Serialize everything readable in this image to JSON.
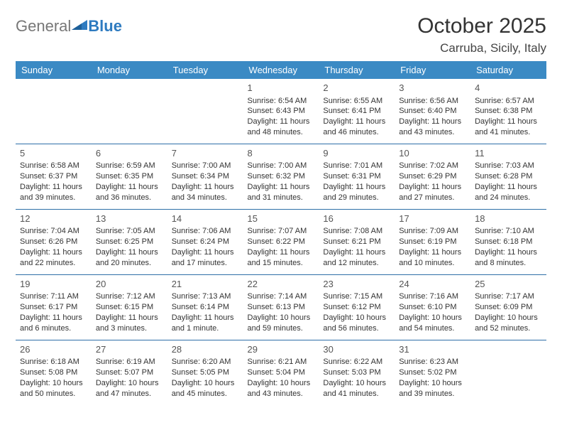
{
  "logo": {
    "general": "General",
    "blue": "Blue"
  },
  "title": "October 2025",
  "location": "Carruba, Sicily, Italy",
  "colors": {
    "headerBg": "#3b8ac4",
    "rowBorder": "#2e6fa8",
    "logoBlue": "#2e7bc0"
  },
  "daysOfWeek": [
    "Sunday",
    "Monday",
    "Tuesday",
    "Wednesday",
    "Thursday",
    "Friday",
    "Saturday"
  ],
  "weeks": [
    [
      null,
      null,
      null,
      {
        "n": "1",
        "sr": "Sunrise: 6:54 AM",
        "ss": "Sunset: 6:43 PM",
        "dl": "Daylight: 11 hours and 48 minutes."
      },
      {
        "n": "2",
        "sr": "Sunrise: 6:55 AM",
        "ss": "Sunset: 6:41 PM",
        "dl": "Daylight: 11 hours and 46 minutes."
      },
      {
        "n": "3",
        "sr": "Sunrise: 6:56 AM",
        "ss": "Sunset: 6:40 PM",
        "dl": "Daylight: 11 hours and 43 minutes."
      },
      {
        "n": "4",
        "sr": "Sunrise: 6:57 AM",
        "ss": "Sunset: 6:38 PM",
        "dl": "Daylight: 11 hours and 41 minutes."
      }
    ],
    [
      {
        "n": "5",
        "sr": "Sunrise: 6:58 AM",
        "ss": "Sunset: 6:37 PM",
        "dl": "Daylight: 11 hours and 39 minutes."
      },
      {
        "n": "6",
        "sr": "Sunrise: 6:59 AM",
        "ss": "Sunset: 6:35 PM",
        "dl": "Daylight: 11 hours and 36 minutes."
      },
      {
        "n": "7",
        "sr": "Sunrise: 7:00 AM",
        "ss": "Sunset: 6:34 PM",
        "dl": "Daylight: 11 hours and 34 minutes."
      },
      {
        "n": "8",
        "sr": "Sunrise: 7:00 AM",
        "ss": "Sunset: 6:32 PM",
        "dl": "Daylight: 11 hours and 31 minutes."
      },
      {
        "n": "9",
        "sr": "Sunrise: 7:01 AM",
        "ss": "Sunset: 6:31 PM",
        "dl": "Daylight: 11 hours and 29 minutes."
      },
      {
        "n": "10",
        "sr": "Sunrise: 7:02 AM",
        "ss": "Sunset: 6:29 PM",
        "dl": "Daylight: 11 hours and 27 minutes."
      },
      {
        "n": "11",
        "sr": "Sunrise: 7:03 AM",
        "ss": "Sunset: 6:28 PM",
        "dl": "Daylight: 11 hours and 24 minutes."
      }
    ],
    [
      {
        "n": "12",
        "sr": "Sunrise: 7:04 AM",
        "ss": "Sunset: 6:26 PM",
        "dl": "Daylight: 11 hours and 22 minutes."
      },
      {
        "n": "13",
        "sr": "Sunrise: 7:05 AM",
        "ss": "Sunset: 6:25 PM",
        "dl": "Daylight: 11 hours and 20 minutes."
      },
      {
        "n": "14",
        "sr": "Sunrise: 7:06 AM",
        "ss": "Sunset: 6:24 PM",
        "dl": "Daylight: 11 hours and 17 minutes."
      },
      {
        "n": "15",
        "sr": "Sunrise: 7:07 AM",
        "ss": "Sunset: 6:22 PM",
        "dl": "Daylight: 11 hours and 15 minutes."
      },
      {
        "n": "16",
        "sr": "Sunrise: 7:08 AM",
        "ss": "Sunset: 6:21 PM",
        "dl": "Daylight: 11 hours and 12 minutes."
      },
      {
        "n": "17",
        "sr": "Sunrise: 7:09 AM",
        "ss": "Sunset: 6:19 PM",
        "dl": "Daylight: 11 hours and 10 minutes."
      },
      {
        "n": "18",
        "sr": "Sunrise: 7:10 AM",
        "ss": "Sunset: 6:18 PM",
        "dl": "Daylight: 11 hours and 8 minutes."
      }
    ],
    [
      {
        "n": "19",
        "sr": "Sunrise: 7:11 AM",
        "ss": "Sunset: 6:17 PM",
        "dl": "Daylight: 11 hours and 6 minutes."
      },
      {
        "n": "20",
        "sr": "Sunrise: 7:12 AM",
        "ss": "Sunset: 6:15 PM",
        "dl": "Daylight: 11 hours and 3 minutes."
      },
      {
        "n": "21",
        "sr": "Sunrise: 7:13 AM",
        "ss": "Sunset: 6:14 PM",
        "dl": "Daylight: 11 hours and 1 minute."
      },
      {
        "n": "22",
        "sr": "Sunrise: 7:14 AM",
        "ss": "Sunset: 6:13 PM",
        "dl": "Daylight: 10 hours and 59 minutes."
      },
      {
        "n": "23",
        "sr": "Sunrise: 7:15 AM",
        "ss": "Sunset: 6:12 PM",
        "dl": "Daylight: 10 hours and 56 minutes."
      },
      {
        "n": "24",
        "sr": "Sunrise: 7:16 AM",
        "ss": "Sunset: 6:10 PM",
        "dl": "Daylight: 10 hours and 54 minutes."
      },
      {
        "n": "25",
        "sr": "Sunrise: 7:17 AM",
        "ss": "Sunset: 6:09 PM",
        "dl": "Daylight: 10 hours and 52 minutes."
      }
    ],
    [
      {
        "n": "26",
        "sr": "Sunrise: 6:18 AM",
        "ss": "Sunset: 5:08 PM",
        "dl": "Daylight: 10 hours and 50 minutes."
      },
      {
        "n": "27",
        "sr": "Sunrise: 6:19 AM",
        "ss": "Sunset: 5:07 PM",
        "dl": "Daylight: 10 hours and 47 minutes."
      },
      {
        "n": "28",
        "sr": "Sunrise: 6:20 AM",
        "ss": "Sunset: 5:05 PM",
        "dl": "Daylight: 10 hours and 45 minutes."
      },
      {
        "n": "29",
        "sr": "Sunrise: 6:21 AM",
        "ss": "Sunset: 5:04 PM",
        "dl": "Daylight: 10 hours and 43 minutes."
      },
      {
        "n": "30",
        "sr": "Sunrise: 6:22 AM",
        "ss": "Sunset: 5:03 PM",
        "dl": "Daylight: 10 hours and 41 minutes."
      },
      {
        "n": "31",
        "sr": "Sunrise: 6:23 AM",
        "ss": "Sunset: 5:02 PM",
        "dl": "Daylight: 10 hours and 39 minutes."
      },
      null
    ]
  ]
}
